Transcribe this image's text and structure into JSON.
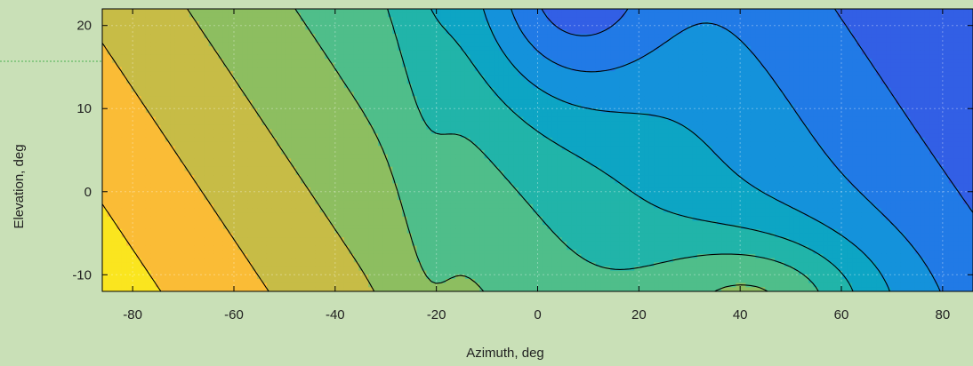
{
  "chart_data": {
    "type": "contour",
    "title": "",
    "xlabel": "Azimuth, deg",
    "ylabel": "Elevation, deg",
    "xlim": [
      -86,
      86
    ],
    "ylim": [
      -12,
      22
    ],
    "xticks": [
      -80,
      -60,
      -40,
      -20,
      0,
      20,
      40,
      60,
      80
    ],
    "yticks": [
      -10,
      0,
      10,
      20
    ],
    "xtick_labels": [
      "-80",
      "-60",
      "-40",
      "-20",
      "0",
      "20",
      "40",
      "60",
      "80"
    ],
    "ytick_labels": [
      "-10",
      "0",
      "10",
      "20"
    ],
    "grid": true,
    "colormap": "parula",
    "colors": {
      "background": "#c9e0b7",
      "axes_border": "#000000",
      "contour_line": "#000000",
      "reference_line": "#4caf50"
    }
  }
}
